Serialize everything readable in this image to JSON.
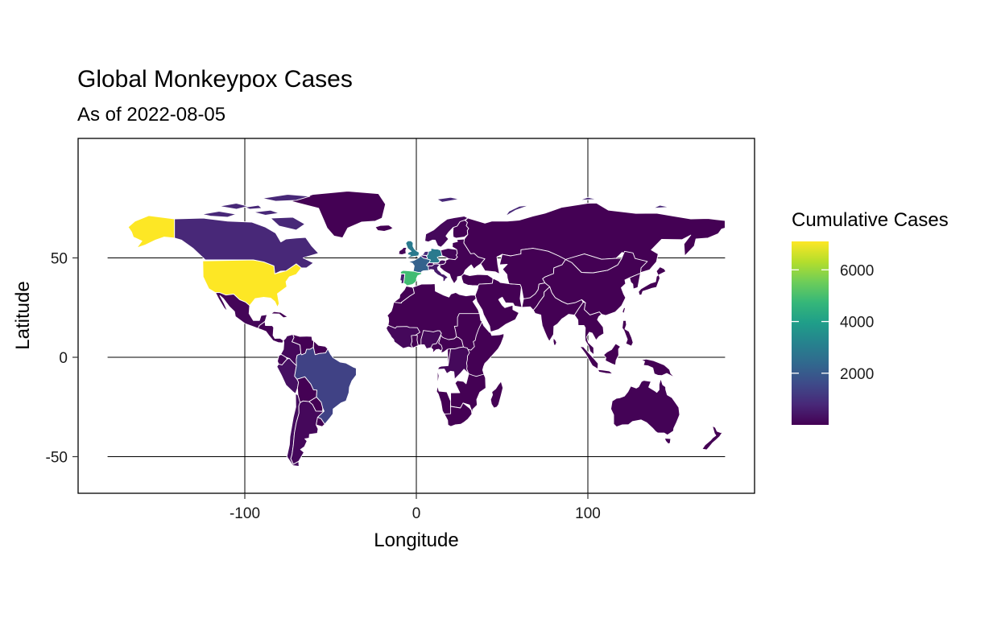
{
  "chart_data": {
    "type": "choropleth-map",
    "title": "Global Monkeypox Cases",
    "subtitle": "As of  2022-08-05",
    "xlabel": "Longitude",
    "ylabel": "Latitude",
    "xlim": [
      -180,
      180
    ],
    "ylim": [
      -58,
      84
    ],
    "x_ticks": [
      -100,
      0,
      100
    ],
    "y_ticks": [
      -50,
      0,
      50
    ],
    "x_tick_labels": [
      "-100",
      "0",
      "100"
    ],
    "y_tick_labels": [
      "-50",
      "0",
      "50"
    ],
    "grid": true,
    "legend": {
      "title": "Cumulative Cases",
      "position": "right",
      "palette": "viridis",
      "range": [
        1,
        7100
      ],
      "ticks": [
        2000,
        4000,
        6000
      ],
      "tick_labels": [
        "2000",
        "4000",
        "6000"
      ],
      "colors": [
        "#440154",
        "#482878",
        "#3E4A89",
        "#31688E",
        "#26828E",
        "#1F9E89",
        "#35B779",
        "#6DCD59",
        "#B4DE2C",
        "#FDE725"
      ]
    },
    "regions": [
      {
        "name": "Alaska",
        "value": 7100
      },
      {
        "name": "United States",
        "value": 7100
      },
      {
        "name": "Canada",
        "value": 800
      },
      {
        "name": "Mexico",
        "value": 90
      },
      {
        "name": "Central America",
        "value": 20
      },
      {
        "name": "Caribbean",
        "value": 20
      },
      {
        "name": "Colombia",
        "value": 150
      },
      {
        "name": "Venezuela",
        "value": 10
      },
      {
        "name": "Ecuador",
        "value": 60
      },
      {
        "name": "Peru",
        "value": 300
      },
      {
        "name": "Brazil",
        "value": 1400
      },
      {
        "name": "Bolivia",
        "value": 10
      },
      {
        "name": "Paraguay",
        "value": 5
      },
      {
        "name": "Argentina",
        "value": 150
      },
      {
        "name": "Chile",
        "value": 250
      },
      {
        "name": "Uruguay",
        "value": 5
      },
      {
        "name": "Greenland",
        "value": 0
      },
      {
        "name": "Iceland",
        "value": 5
      },
      {
        "name": "United Kingdom",
        "value": 2900
      },
      {
        "name": "Ireland",
        "value": 100
      },
      {
        "name": "France",
        "value": 2200
      },
      {
        "name": "Germany",
        "value": 2900
      },
      {
        "name": "Spain",
        "value": 4900
      },
      {
        "name": "Portugal",
        "value": 600
      },
      {
        "name": "Italy",
        "value": 500
      },
      {
        "name": "Netherlands",
        "value": 900
      },
      {
        "name": "Belgium",
        "value": 500
      },
      {
        "name": "Switzerland",
        "value": 300
      },
      {
        "name": "Austria",
        "value": 200
      },
      {
        "name": "Poland",
        "value": 100
      },
      {
        "name": "Scandinavia",
        "value": 150
      },
      {
        "name": "Finland",
        "value": 20
      },
      {
        "name": "Eastern Europe",
        "value": 20
      },
      {
        "name": "Russia",
        "value": 2
      },
      {
        "name": "Turkey",
        "value": 10
      },
      {
        "name": "Middle East",
        "value": 10
      },
      {
        "name": "Central Asia",
        "value": 2
      },
      {
        "name": "India",
        "value": 9
      },
      {
        "name": "China",
        "value": 1
      },
      {
        "name": "Mongolia",
        "value": 0
      },
      {
        "name": "Japan",
        "value": 5
      },
      {
        "name": "South Korea",
        "value": 1
      },
      {
        "name": "Southeast Asia",
        "value": 5
      },
      {
        "name": "Indonesia",
        "value": 1
      },
      {
        "name": "Philippines",
        "value": 1
      },
      {
        "name": "Morocco",
        "value": 3
      },
      {
        "name": "West Africa",
        "value": 150
      },
      {
        "name": "Nigeria",
        "value": 160
      },
      {
        "name": "Ghana",
        "value": 5
      },
      {
        "name": "Central Africa",
        "value": 10
      },
      {
        "name": "DR Congo",
        "value": 160
      },
      {
        "name": "Sudan",
        "value": 5
      },
      {
        "name": "South Africa",
        "value": 5
      },
      {
        "name": "Australia",
        "value": 50
      },
      {
        "name": "New Zealand",
        "value": 2
      }
    ]
  }
}
